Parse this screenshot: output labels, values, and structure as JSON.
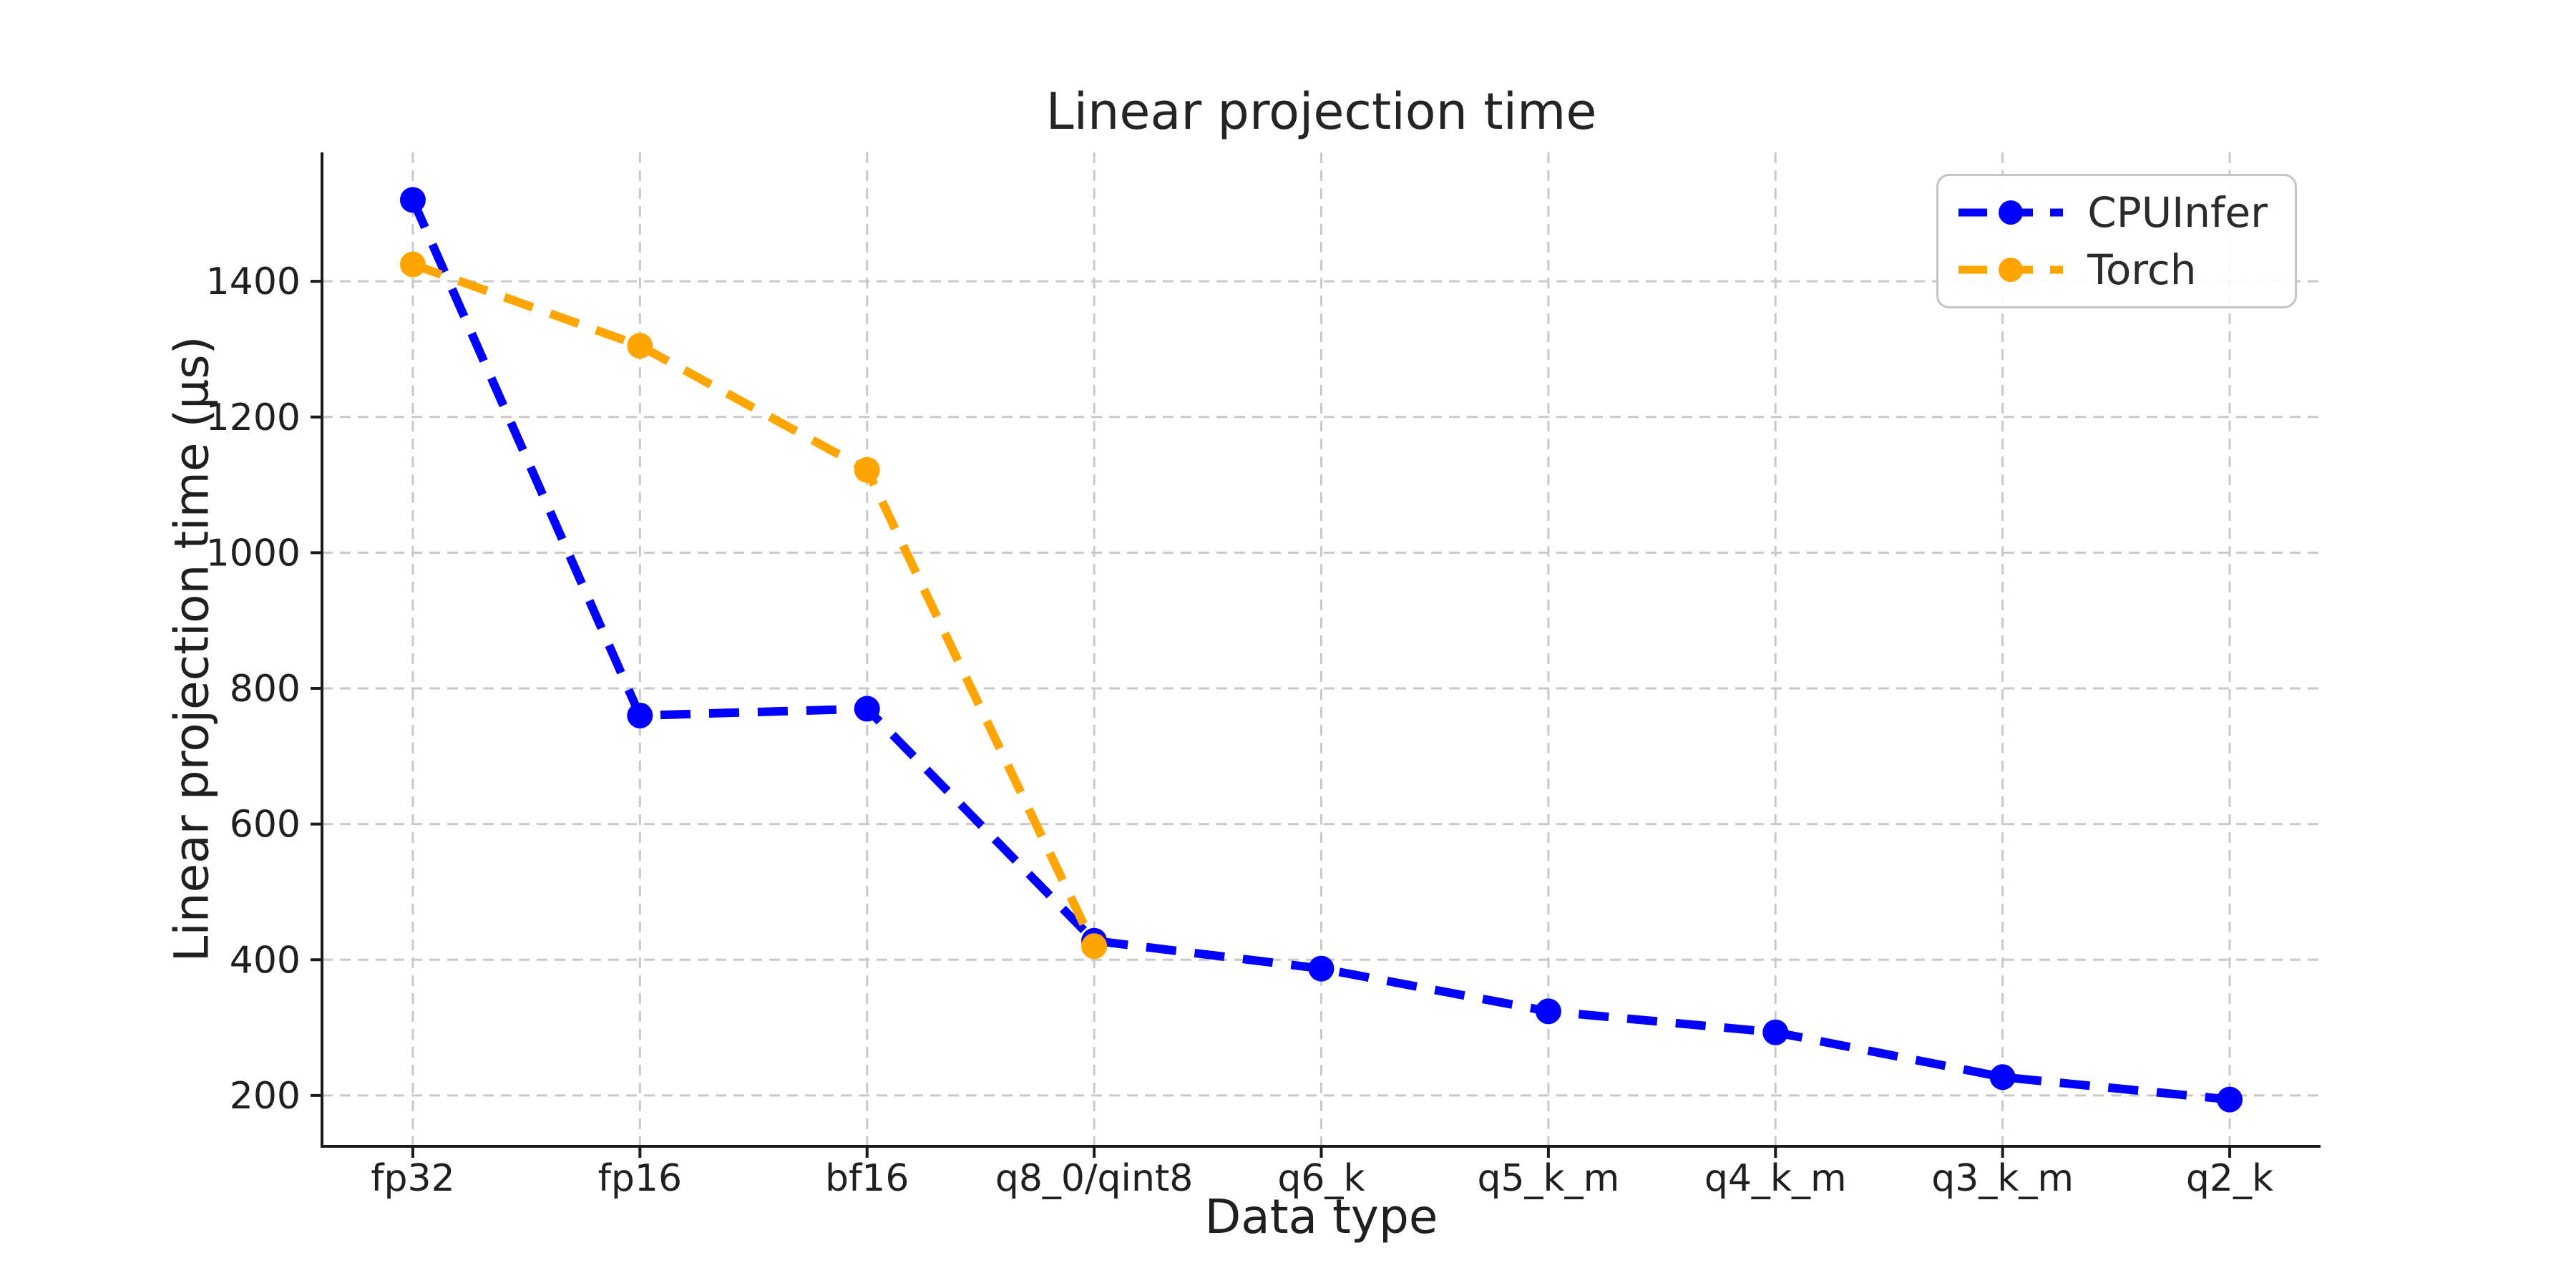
{
  "chart_data": {
    "type": "line",
    "title": "Linear projection time",
    "xlabel": "Data type",
    "ylabel": "Linear projection time (µs)",
    "categories": [
      "fp32",
      "fp16",
      "bf16",
      "q8_0/qint8",
      "q6_k",
      "q5_k_m",
      "q4_k_m",
      "q3_k_m",
      "q2_k"
    ],
    "series": [
      {
        "name": "CPUInfer",
        "color": "#0000ff",
        "values": [
          1520,
          760,
          770,
          428,
          387,
          324,
          293,
          227,
          194
        ]
      },
      {
        "name": "Torch",
        "color": "#ffa500",
        "values": [
          1425,
          1305,
          1122,
          420,
          null,
          null,
          null,
          null,
          null
        ]
      }
    ],
    "y_ticks": [
      200,
      400,
      600,
      800,
      1000,
      1200,
      1400
    ],
    "ylim": [
      125,
      1590
    ],
    "grid": true,
    "grid_style": "dashed",
    "line_style": "dashed",
    "marker": "circle",
    "legend_position": "upper right",
    "grid_color": "#c9c9c9",
    "axis_color": "#1a1a1a",
    "text_color": "#1f1f1f"
  }
}
